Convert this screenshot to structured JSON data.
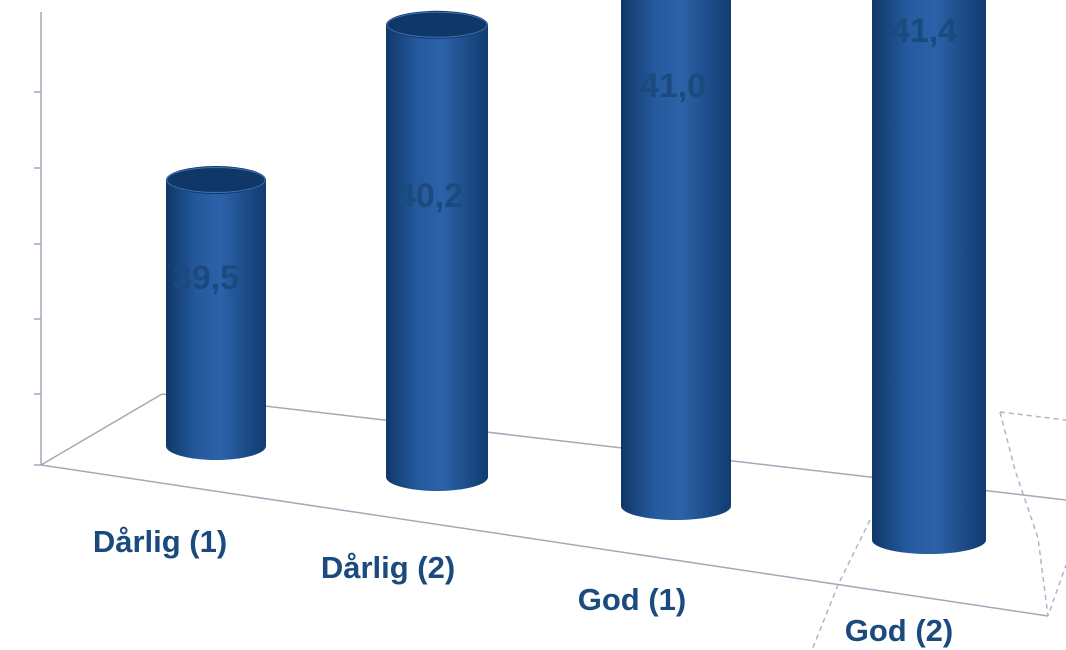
{
  "chart_data": {
    "type": "bar",
    "style": "3d-cylinder",
    "categories": [
      "Dårlig (1)",
      "Dårlig (2)",
      "God (1)",
      "God (2)"
    ],
    "values": [
      39.5,
      40.2,
      41.0,
      41.4
    ],
    "value_labels": [
      "39,5",
      "40,2",
      "41,0",
      "41,4"
    ],
    "title": "",
    "xlabel": "",
    "ylabel": "",
    "grid": false,
    "legend": "none",
    "colors": {
      "bar": "#1f5296",
      "bar_dark": "#0f3868",
      "bar_light": "#3c70b5",
      "label": "#1b4a7e",
      "axis": "#a3a9b8",
      "selection": "#a9b8cc"
    }
  }
}
